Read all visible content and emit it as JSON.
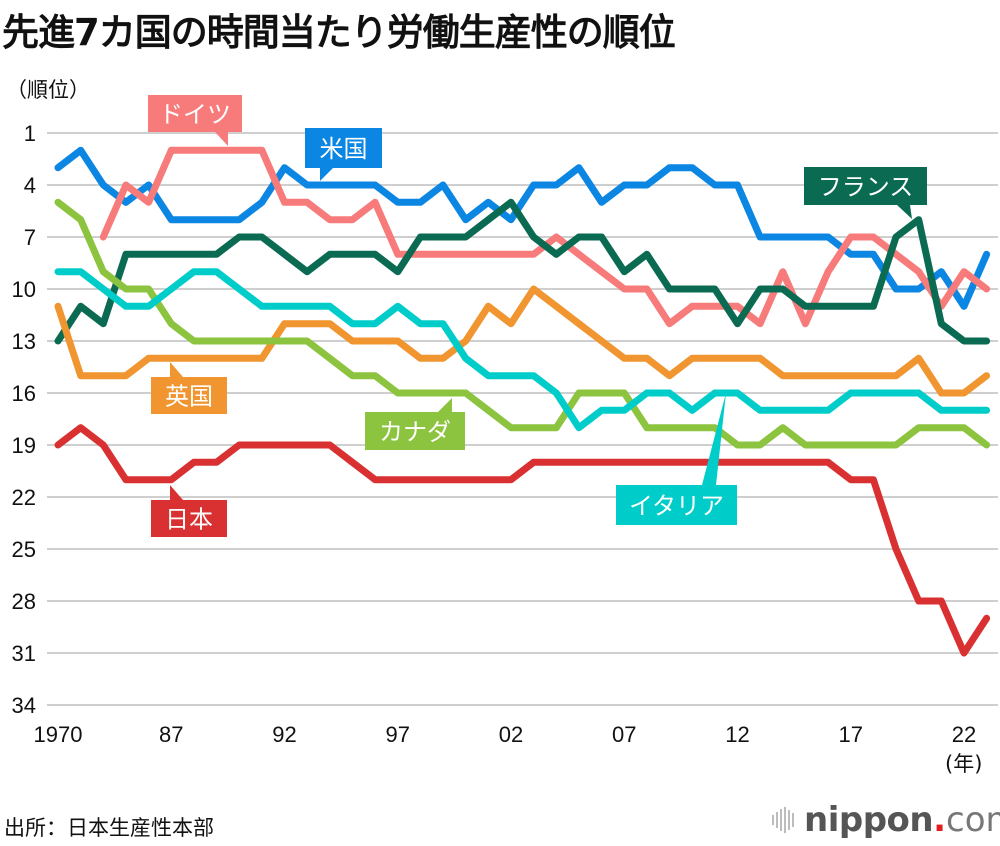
{
  "title": "先進7カ国の時間当たり労働生産性の順位",
  "y_unit_label": "（順位）",
  "x_unit_label": "(年)",
  "source": "出所：日本生産性本部",
  "logo": {
    "word": "nippon",
    "dot": ".",
    "suffix": "com"
  },
  "chart_data": {
    "type": "line",
    "title": "先進7カ国の時間当たり労働生産性の順位",
    "xlabel": "(年)",
    "ylabel": "（順位）",
    "x_tick_labels": [
      "1970",
      "87",
      "92",
      "97",
      "02",
      "07",
      "12",
      "17",
      "22"
    ],
    "x_tick_indices": [
      0,
      5,
      10,
      15,
      20,
      25,
      30,
      35,
      40
    ],
    "point_count": 42,
    "y_ticks": [
      1,
      4,
      7,
      10,
      13,
      16,
      19,
      22,
      25,
      28,
      31,
      34
    ],
    "ylim": [
      1,
      34
    ],
    "y_inverted": true,
    "grid": true,
    "series": [
      {
        "name": "米国",
        "color": "#0b86e3",
        "values": [
          3,
          2,
          4,
          5,
          4,
          6,
          6,
          6,
          6,
          5,
          3,
          4,
          4,
          4,
          4,
          5,
          5,
          4,
          6,
          5,
          6,
          4,
          4,
          3,
          5,
          4,
          4,
          3,
          3,
          4,
          4,
          7,
          7,
          7,
          7,
          8,
          8,
          10,
          10,
          9,
          11,
          8
        ]
      },
      {
        "name": "ドイツ",
        "color": "#f77b7b",
        "values": [
          null,
          null,
          7,
          4,
          5,
          2,
          2,
          2,
          2,
          2,
          5,
          5,
          6,
          6,
          5,
          8,
          8,
          8,
          8,
          8,
          8,
          8,
          7,
          8,
          9,
          10,
          10,
          12,
          11,
          11,
          11,
          12,
          9,
          12,
          9,
          7,
          7,
          8,
          9,
          11,
          9,
          10
        ]
      },
      {
        "name": "フランス",
        "color": "#0b6b52",
        "values": [
          13,
          11,
          12,
          8,
          8,
          8,
          8,
          8,
          7,
          7,
          8,
          9,
          8,
          8,
          8,
          9,
          7,
          7,
          7,
          6,
          5,
          7,
          8,
          7,
          7,
          9,
          8,
          10,
          10,
          10,
          12,
          10,
          10,
          11,
          11,
          11,
          11,
          7,
          6,
          12,
          13,
          13
        ]
      },
      {
        "name": "英国",
        "color": "#f0952f",
        "values": [
          11,
          15,
          15,
          15,
          14,
          14,
          14,
          14,
          14,
          14,
          12,
          12,
          12,
          13,
          13,
          13,
          14,
          14,
          13,
          11,
          12,
          10,
          11,
          12,
          13,
          14,
          14,
          15,
          14,
          14,
          14,
          14,
          15,
          15,
          15,
          15,
          15,
          15,
          14,
          16,
          16,
          15
        ]
      },
      {
        "name": "カナダ",
        "color": "#8cc43f",
        "values": [
          5,
          6,
          9,
          10,
          10,
          12,
          13,
          13,
          13,
          13,
          13,
          13,
          14,
          15,
          15,
          16,
          16,
          16,
          16,
          17,
          18,
          18,
          18,
          16,
          16,
          16,
          18,
          18,
          18,
          18,
          19,
          19,
          18,
          19,
          19,
          19,
          19,
          19,
          18,
          18,
          18,
          19
        ]
      },
      {
        "name": "イタリア",
        "color": "#00cdca",
        "values": [
          9,
          9,
          10,
          11,
          11,
          10,
          9,
          9,
          10,
          11,
          11,
          11,
          11,
          12,
          12,
          11,
          12,
          12,
          14,
          15,
          15,
          15,
          16,
          18,
          17,
          17,
          16,
          16,
          17,
          16,
          16,
          17,
          17,
          17,
          17,
          16,
          16,
          16,
          16,
          17,
          17,
          17
        ]
      },
      {
        "name": "日本",
        "color": "#d93032",
        "values": [
          19,
          18,
          19,
          21,
          21,
          21,
          20,
          20,
          19,
          19,
          19,
          19,
          19,
          20,
          21,
          21,
          21,
          21,
          21,
          21,
          21,
          20,
          20,
          20,
          20,
          20,
          20,
          20,
          20,
          20,
          20,
          20,
          20,
          20,
          20,
          21,
          21,
          25,
          28,
          28,
          31,
          29
        ]
      }
    ],
    "annotations": [
      {
        "text": "ドイツ",
        "series": "ドイツ"
      },
      {
        "text": "米国",
        "series": "米国"
      },
      {
        "text": "フランス",
        "series": "フランス"
      },
      {
        "text": "英国",
        "series": "英国"
      },
      {
        "text": "カナダ",
        "series": "カナダ"
      },
      {
        "text": "イタリア",
        "series": "イタリア"
      },
      {
        "text": "日本",
        "series": "日本"
      }
    ]
  }
}
